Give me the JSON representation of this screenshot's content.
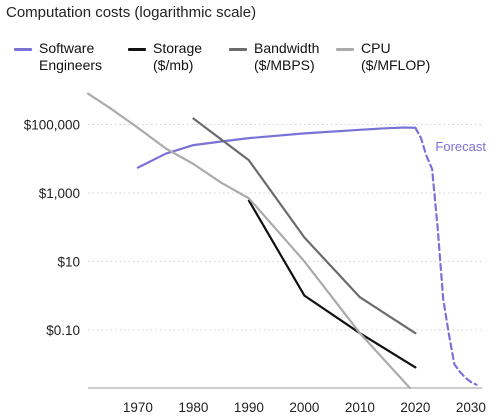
{
  "chart_data": {
    "type": "line",
    "title": "Computation costs (logarithmic scale)",
    "xlabel": "",
    "ylabel": "",
    "y_scale": "log",
    "xlim": [
      1961,
      2032
    ],
    "ylim": [
      0.002,
      2000000
    ],
    "x_ticks": [
      1970,
      1980,
      1990,
      2000,
      2010,
      2020,
      2030
    ],
    "y_ticks": [
      {
        "value": 100000,
        "label": "$100,000"
      },
      {
        "value": 1000,
        "label": "$1,000"
      },
      {
        "value": 10,
        "label": "$10"
      },
      {
        "value": 0.1,
        "label": "$0.10"
      }
    ],
    "grid": "horizontal dotted",
    "legend_position": "top",
    "series": [
      {
        "name": "Software\nEngineers",
        "color": "#7b72d8",
        "style": "solid",
        "x": [
          1970,
          1975,
          1980,
          1985,
          1990,
          2000,
          2010,
          2015,
          2018,
          2020
        ],
        "y": [
          5500,
          14000,
          25000,
          32000,
          40000,
          55000,
          70000,
          78000,
          82000,
          80000
        ]
      },
      {
        "name": "Forecast",
        "color": "#7b72d8",
        "style": "dashed",
        "x": [
          2020,
          2021,
          2022,
          2023,
          2024,
          2025,
          2026,
          2027,
          2028,
          2029,
          2030,
          2031
        ],
        "y": [
          80000,
          40000,
          12000,
          5000,
          100,
          0.8,
          0.08,
          0.01,
          0.006,
          0.004,
          0.003,
          0.0025
        ]
      },
      {
        "name": "Storage\n($/mb)",
        "color": "#111111",
        "style": "solid",
        "x": [
          1990,
          2000,
          2010,
          2020
        ],
        "y": [
          600,
          1,
          0.08,
          0.008
        ]
      },
      {
        "name": "Bandwidth\n($/MBPS)",
        "color": "#6b6b6b",
        "style": "solid",
        "x": [
          1980,
          1990,
          2000,
          2010,
          2020
        ],
        "y": [
          150000,
          9000,
          50,
          0.9,
          0.08
        ]
      },
      {
        "name": "CPU\n($/MFLOP)",
        "color": "#ababab",
        "style": "solid",
        "x": [
          1961,
          1965,
          1970,
          1975,
          1980,
          1985,
          1990,
          2000,
          2010,
          2019
        ],
        "y": [
          800000,
          300000,
          80000,
          20000,
          7000,
          2000,
          700,
          10,
          0.08,
          0.002
        ]
      }
    ],
    "annotations": [
      {
        "text": "Forecast",
        "color": "#7b72d8"
      }
    ]
  }
}
